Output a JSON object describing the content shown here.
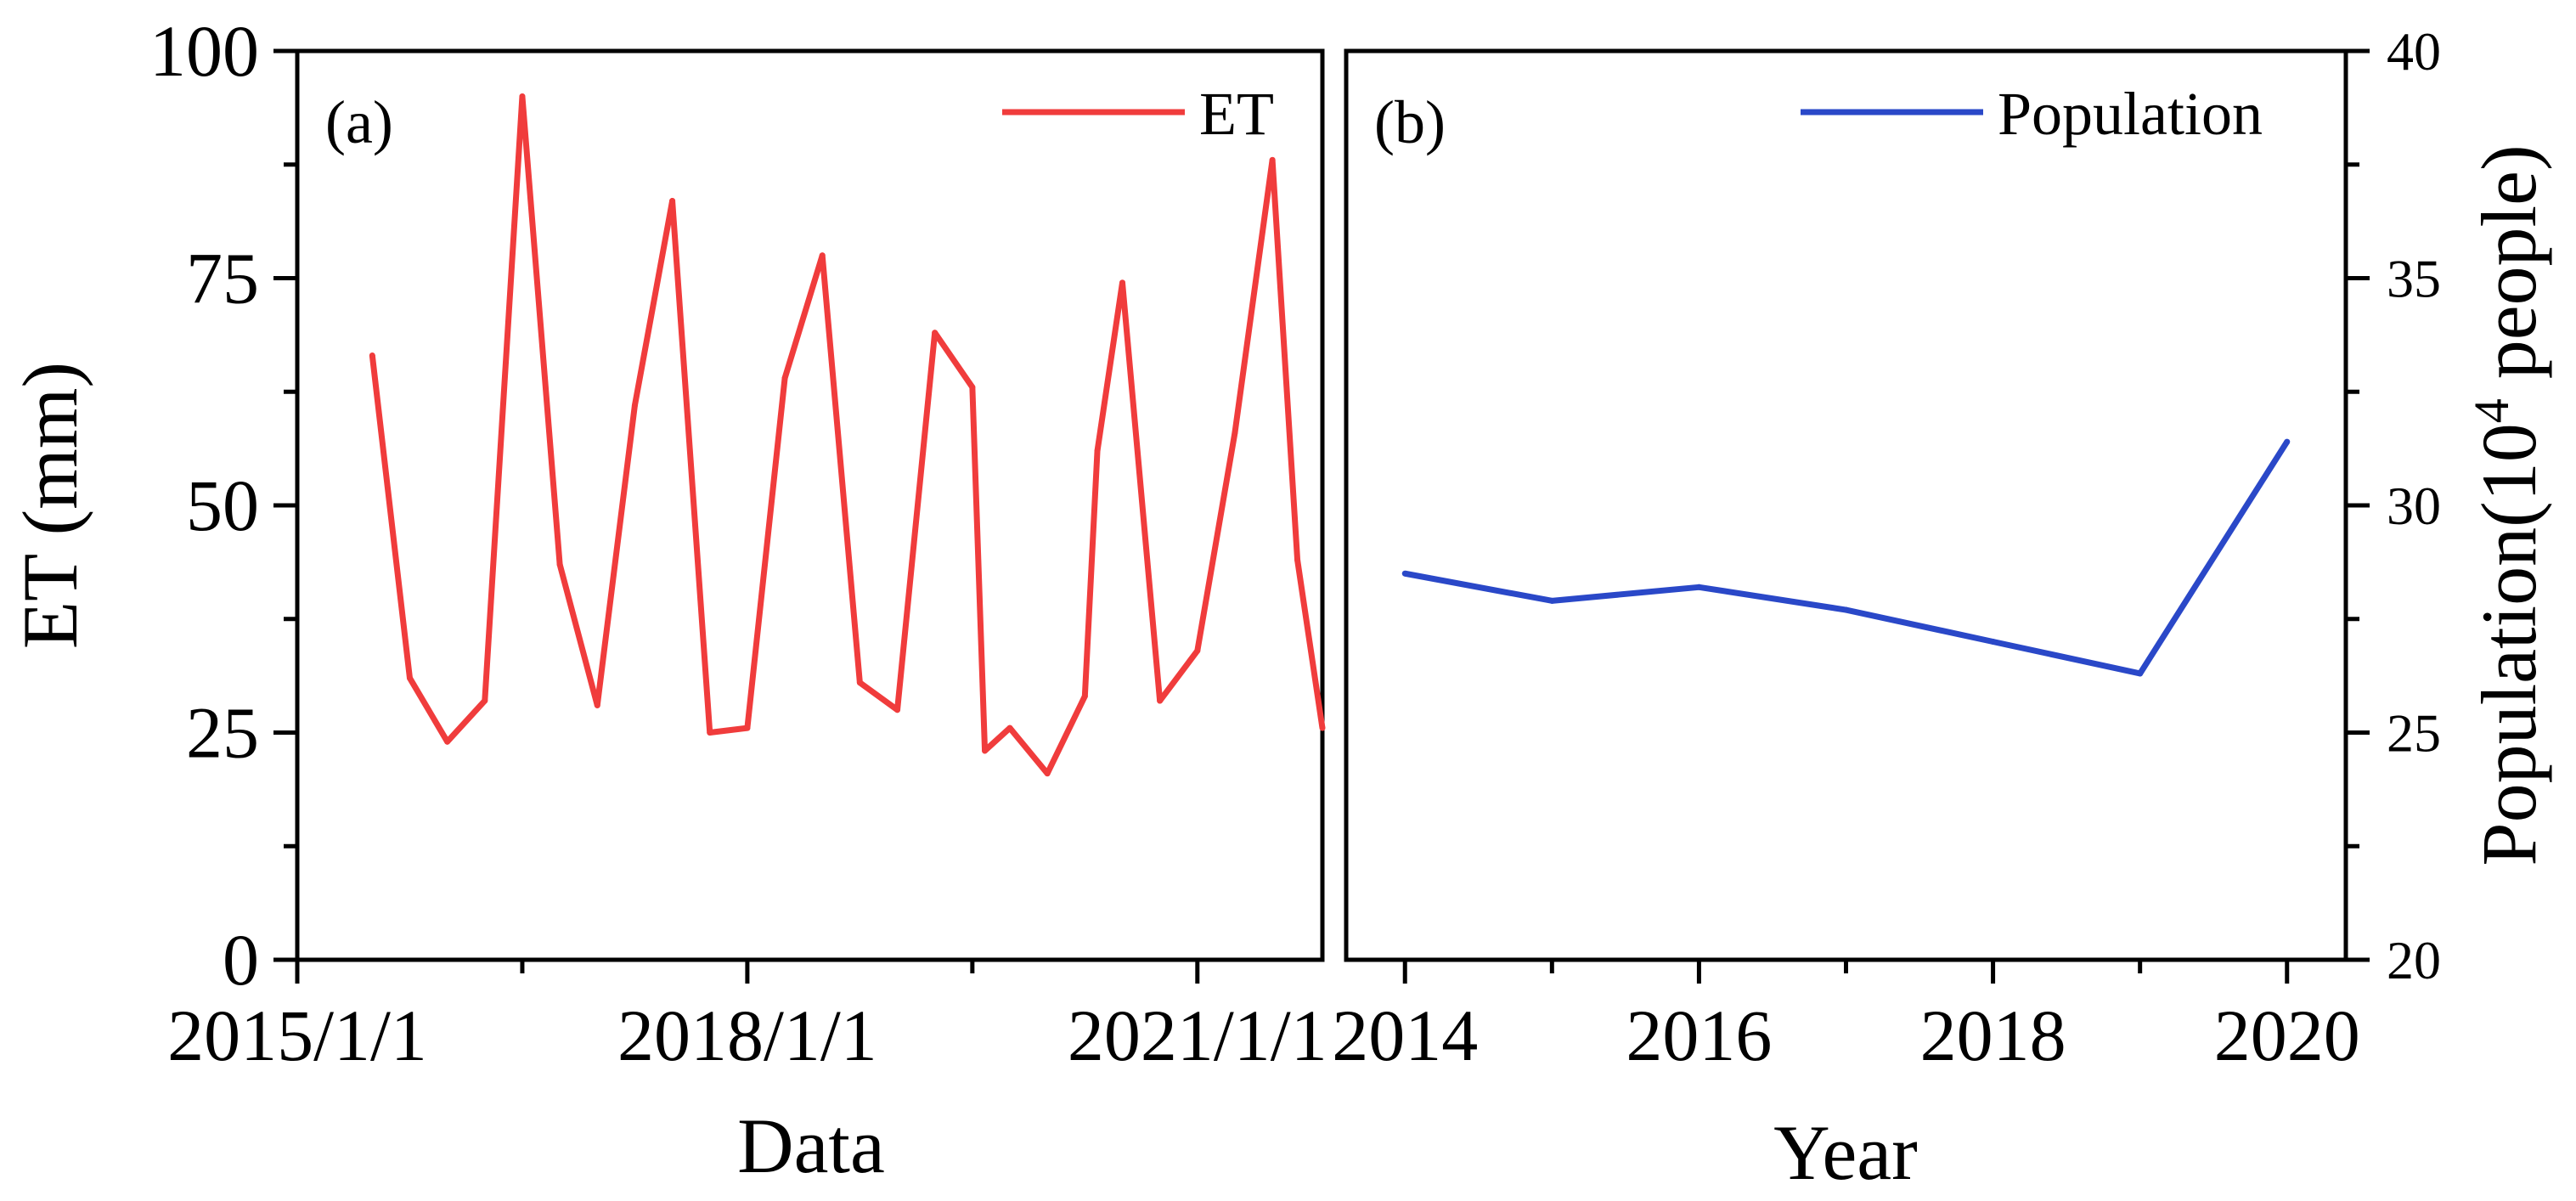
{
  "chart_data": [
    {
      "type": "line",
      "panel_label": "(a)",
      "title": "",
      "xlabel": "Data",
      "ylabel": "ET (mm)",
      "ylim": [
        0,
        100
      ],
      "y_ticks": [
        0,
        25,
        50,
        75,
        100
      ],
      "x_ticks": [
        {
          "label": "2015/1/1",
          "t": 0
        },
        {
          "label": "2018/1/1",
          "t": 36
        },
        {
          "label": "2021/1/1",
          "t": 72
        }
      ],
      "xlim_months": [
        0,
        82
      ],
      "legend": {
        "position": "top-right"
      },
      "series": [
        {
          "name": "ET",
          "color": "#f03c3c",
          "x_months": [
            6,
            9,
            12,
            15,
            18,
            21,
            24,
            27,
            30,
            33,
            36,
            39,
            42,
            45,
            48,
            51,
            54,
            55,
            57,
            60,
            63,
            64,
            66,
            69,
            72,
            75,
            78,
            80,
            82
          ],
          "values": [
            66.5,
            31,
            24,
            28.5,
            95,
            43.5,
            28,
            61,
            83.5,
            25,
            25.5,
            64,
            77.5,
            30.5,
            27.5,
            69,
            63,
            23,
            25.5,
            20.5,
            29,
            56,
            74.5,
            28.5,
            34,
            58,
            88,
            44,
            25.5
          ]
        }
      ]
    },
    {
      "type": "line",
      "panel_label": "(b)",
      "title": "",
      "xlabel": "Year",
      "ylabel": "Population(10",
      "ylabel_sup": "4",
      "ylabel_tail": " people)",
      "ylim": [
        20,
        40
      ],
      "y_ticks": [
        20,
        25,
        30,
        35,
        40
      ],
      "xlim": [
        2013.6,
        2020.4
      ],
      "x_ticks": [
        2014,
        2016,
        2018,
        2020
      ],
      "legend": {
        "position": "top-right"
      },
      "series": [
        {
          "name": "Population",
          "color": "#2a48c8",
          "x": [
            2014,
            2015,
            2016,
            2017,
            2018,
            2019,
            2020
          ],
          "values": [
            28.5,
            27.9,
            28.2,
            27.7,
            27.0,
            26.3,
            31.4
          ]
        }
      ]
    }
  ]
}
